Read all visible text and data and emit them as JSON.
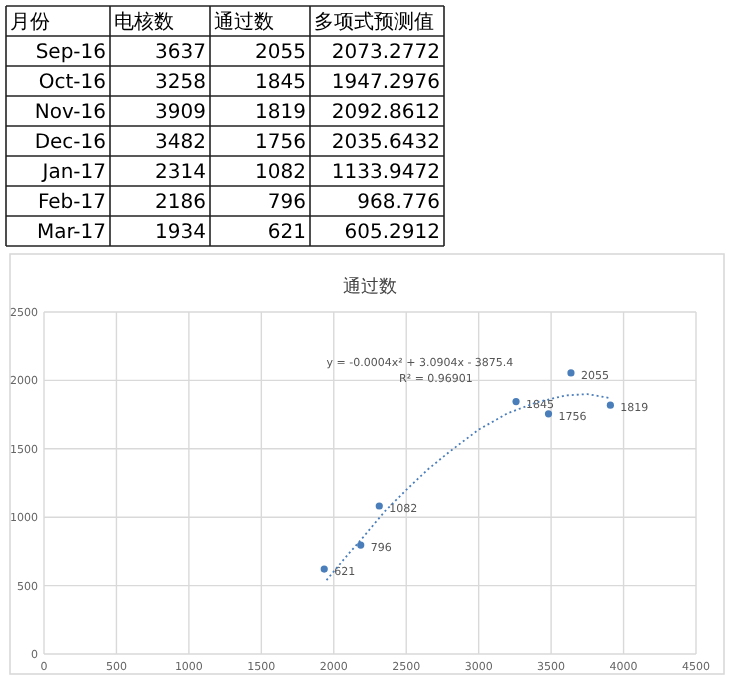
{
  "chart_data": [
    {
      "type": "other",
      "xlabel": "月份",
      "categories": [
        "Sep-16",
        "Oct-16",
        "Nov-16",
        "Dec-16",
        "Jan-17",
        "Feb-17",
        "Mar-17"
      ],
      "data_labels": true,
      "series": [
        {
          "name": "电核数",
          "values": [
            3637,
            3258,
            3909,
            3482,
            2314,
            2186,
            1934
          ]
        },
        {
          "name": "通过数",
          "values": [
            2055,
            1845,
            1819,
            1756,
            1082,
            796,
            621
          ]
        },
        {
          "name": "多项式预测值",
          "values": [
            2073.2772,
            1947.2976,
            2092.8612,
            2035.6432,
            1133.9472,
            968.776,
            605.2912
          ]
        }
      ]
    },
    {
      "type": "scatter",
      "title": "通过数",
      "xlim": [
        0,
        4500
      ],
      "xticks": [
        0,
        500,
        1000,
        1500,
        2000,
        2500,
        3000,
        3500,
        4000,
        4500
      ],
      "ylim": [
        0,
        2500
      ],
      "yticks": [
        0,
        500,
        1000,
        1500,
        2000,
        2500
      ],
      "grid": true,
      "annotations": [
        "y = -0.0004x² + 3.0904x - 3875.4",
        "R² = 0.96901"
      ],
      "series": [
        {
          "type": "scatter",
          "marker": "circle",
          "data_labels": true,
          "color": "#4a7ebb",
          "x": [
            3637,
            3258,
            3909,
            3482,
            2314,
            2186,
            1934
          ],
          "values": [
            2055,
            1845,
            1819,
            1756,
            1082,
            796,
            621
          ]
        },
        {
          "type": "line",
          "line_style": "dotted",
          "color": "#4a7ebb",
          "x": [
            1950,
            2100,
            2200,
            2350,
            2500,
            2650,
            2800,
            3000,
            3200,
            3400,
            3600,
            3750,
            3909
          ],
          "values": [
            540,
            730,
            850,
            1040,
            1200,
            1350,
            1480,
            1640,
            1760,
            1840,
            1890,
            1900,
            1870
          ]
        }
      ]
    }
  ]
}
